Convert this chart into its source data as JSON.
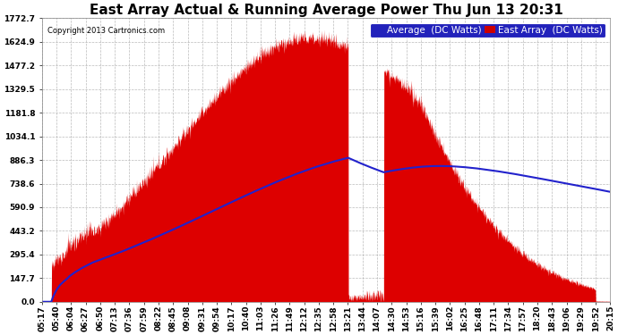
{
  "title": "East Array Actual & Running Average Power Thu Jun 13 20:31",
  "copyright": "Copyright 2013 Cartronics.com",
  "bg_color": "#ffffff",
  "plot_bg_color": "#ffffff",
  "grid_color": "#aaaaaa",
  "title_color": "#000000",
  "text_color": "#000000",
  "yticks": [
    0.0,
    147.7,
    295.4,
    443.2,
    590.9,
    738.6,
    886.3,
    1034.1,
    1181.8,
    1329.5,
    1477.2,
    1624.9,
    1772.7
  ],
  "ymax": 1772.7,
  "ymin": 0.0,
  "legend_average_color": "#2222bb",
  "legend_east_color": "#cc0000",
  "xtick_labels": [
    "05:17",
    "05:40",
    "06:04",
    "06:27",
    "06:50",
    "07:13",
    "07:36",
    "07:59",
    "08:22",
    "08:45",
    "09:08",
    "09:31",
    "09:54",
    "10:17",
    "10:40",
    "11:03",
    "11:26",
    "11:49",
    "12:12",
    "12:35",
    "12:58",
    "13:21",
    "13:44",
    "14:07",
    "14:30",
    "14:53",
    "15:16",
    "15:39",
    "16:02",
    "16:25",
    "16:48",
    "17:11",
    "17:34",
    "17:57",
    "18:20",
    "18:43",
    "19:06",
    "19:29",
    "19:52",
    "20:15"
  ],
  "fill_color": "#dd0000",
  "line_color": "#2222cc",
  "title_fontsize": 11,
  "tick_fontsize": 6.5,
  "legend_fontsize": 7.5,
  "legend_avg_bg": "#2222bb",
  "legend_east_bg": "#cc0000"
}
